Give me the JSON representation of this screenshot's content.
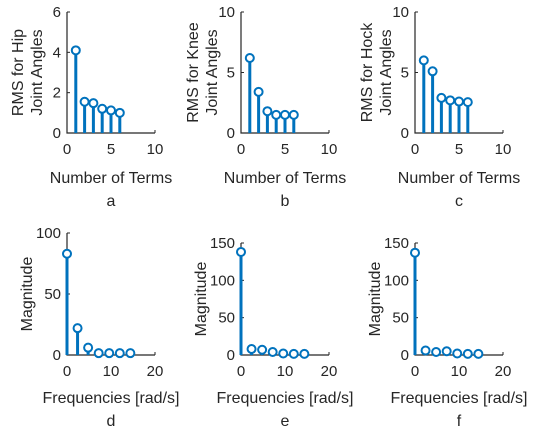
{
  "chart_data": [
    {
      "type": "stem",
      "caption": "a",
      "xlabel": "Number of Terms",
      "ylabel": [
        "RMS for Hip",
        "Joint Angles"
      ],
      "xlim": [
        0,
        10
      ],
      "ylim": [
        0,
        6
      ],
      "xticks": [
        0,
        5,
        10
      ],
      "yticks": [
        0,
        2,
        4,
        6
      ],
      "x": [
        1,
        2,
        3,
        4,
        5,
        6
      ],
      "values": [
        4.1,
        1.55,
        1.48,
        1.2,
        1.12,
        1.0
      ],
      "color": "#0072BD"
    },
    {
      "type": "stem",
      "caption": "b",
      "xlabel": "Number of Terms",
      "ylabel": [
        "RMS for Knee",
        "Joint Angles"
      ],
      "xlim": [
        0,
        10
      ],
      "ylim": [
        0,
        10
      ],
      "xticks": [
        0,
        5,
        10
      ],
      "yticks": [
        0,
        5,
        10
      ],
      "x": [
        1,
        2,
        3,
        4,
        5,
        6
      ],
      "values": [
        6.2,
        3.4,
        1.8,
        1.5,
        1.5,
        1.5
      ],
      "color": "#0072BD"
    },
    {
      "type": "stem",
      "caption": "c",
      "xlabel": "Number of Terms",
      "ylabel": [
        "RMS for Hock",
        "Joint Angles"
      ],
      "xlim": [
        0,
        10
      ],
      "ylim": [
        0,
        10
      ],
      "xticks": [
        0,
        5,
        10
      ],
      "yticks": [
        0,
        5,
        10
      ],
      "x": [
        1,
        2,
        3,
        4,
        5,
        6
      ],
      "values": [
        6.0,
        5.1,
        2.9,
        2.7,
        2.6,
        2.55
      ],
      "color": "#0072BD"
    },
    {
      "type": "stem",
      "caption": "d",
      "xlabel": "Frequencies [rad/s]",
      "ylabel": [
        "Magnitude"
      ],
      "xlim": [
        0,
        20
      ],
      "ylim": [
        0,
        100
      ],
      "xticks": [
        0,
        10,
        20
      ],
      "yticks": [
        0,
        50,
        100
      ],
      "x": [
        0,
        2.4,
        4.8,
        7.2,
        9.6,
        12.0,
        14.4
      ],
      "values": [
        83,
        22,
        6,
        1.5,
        1.5,
        1.5,
        1.5
      ],
      "color": "#0072BD"
    },
    {
      "type": "stem",
      "caption": "e",
      "xlabel": "Frequencies [rad/s]",
      "ylabel": [
        "Magnitude"
      ],
      "xlim": [
        0,
        20
      ],
      "ylim": [
        0,
        150
      ],
      "xticks": [
        0,
        10,
        20
      ],
      "yticks": [
        0,
        50,
        100,
        150
      ],
      "x": [
        0,
        2.4,
        4.8,
        7.2,
        9.6,
        12.0,
        14.4
      ],
      "values": [
        138,
        8,
        7,
        4,
        2,
        1.5,
        1.5
      ],
      "color": "#0072BD"
    },
    {
      "type": "stem",
      "caption": "f",
      "xlabel": "Frequencies [rad/s]",
      "ylabel": [
        "Magnitude"
      ],
      "xlim": [
        0,
        20
      ],
      "ylim": [
        0,
        150
      ],
      "xticks": [
        0,
        10,
        20
      ],
      "yticks": [
        0,
        50,
        100,
        150
      ],
      "x": [
        0,
        2.4,
        4.8,
        7.2,
        9.6,
        12.0,
        14.4
      ],
      "values": [
        137,
        6,
        4,
        5,
        2,
        1.5,
        1.5
      ],
      "color": "#0072BD"
    }
  ]
}
